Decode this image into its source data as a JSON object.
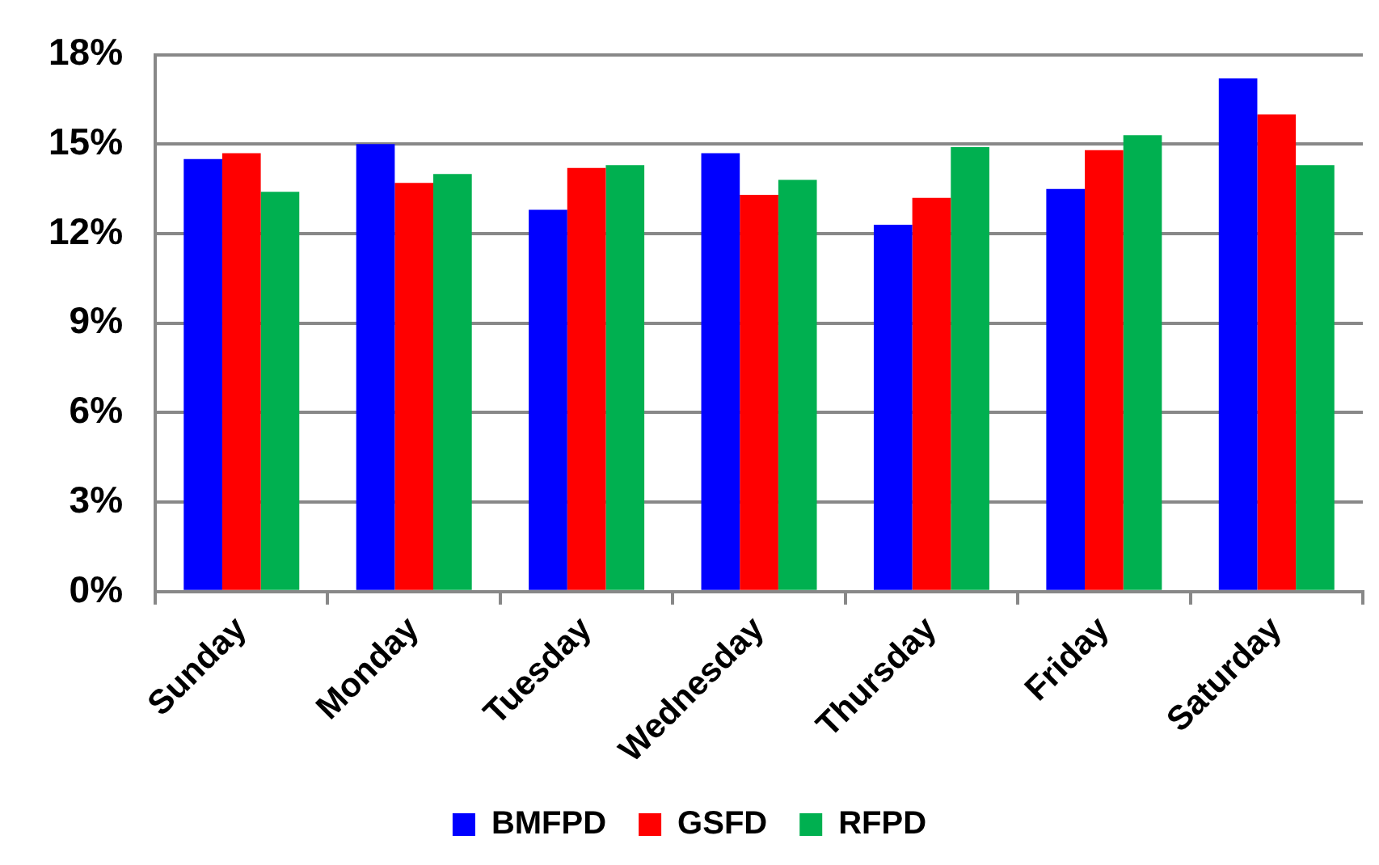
{
  "chart_data": {
    "type": "bar",
    "categories": [
      "Sunday",
      "Monday",
      "Tuesday",
      "Wednesday",
      "Thursday",
      "Friday",
      "Saturday"
    ],
    "series": [
      {
        "name": "BMFPD",
        "color": "#0000ff",
        "values": [
          14.5,
          15.0,
          12.8,
          14.7,
          12.3,
          13.5,
          17.2
        ]
      },
      {
        "name": "GSFD",
        "color": "#ff0000",
        "values": [
          14.7,
          13.7,
          14.2,
          13.3,
          13.2,
          14.8,
          16.0
        ]
      },
      {
        "name": "RFPD",
        "color": "#00b050",
        "values": [
          13.4,
          14.0,
          14.3,
          13.8,
          14.9,
          15.3,
          14.3
        ]
      }
    ],
    "ylim": [
      0,
      18
    ],
    "yticks": [
      {
        "value": 0,
        "label": "0%"
      },
      {
        "value": 3,
        "label": "3%"
      },
      {
        "value": 6,
        "label": "6%"
      },
      {
        "value": 9,
        "label": "9%"
      },
      {
        "value": 12,
        "label": "12%"
      },
      {
        "value": 15,
        "label": "15%"
      },
      {
        "value": 18,
        "label": "18%"
      }
    ],
    "grid": "y",
    "legend": "bottom"
  }
}
